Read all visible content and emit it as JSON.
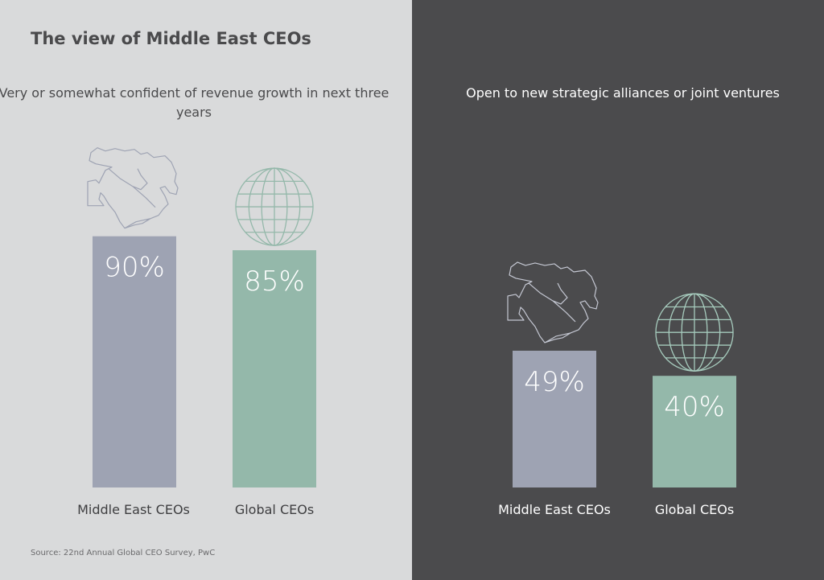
{
  "title": "The view of Middle East CEOs",
  "source": "Source: 22nd Annual Global CEO Survey, PwC",
  "colors": {
    "middle_east": "#9ea3b3",
    "global": "#94b8aa",
    "left_bg": "#d9dadb",
    "right_bg": "#4b4b4d"
  },
  "chart_data": [
    {
      "type": "bar",
      "title": "Very or somewhat confident of revenue growth in next three years",
      "categories": [
        "Middle East CEOs",
        "Global CEOs"
      ],
      "values": [
        90,
        85
      ],
      "labels": [
        "90%",
        "85%"
      ],
      "icons": [
        "middle-east-map-icon",
        "globe-icon"
      ]
    },
    {
      "type": "bar",
      "title": "Open to new strategic alliances or joint ventures",
      "categories": [
        "Middle East CEOs",
        "Global CEOs"
      ],
      "values": [
        49,
        40
      ],
      "labels": [
        "49%",
        "40%"
      ],
      "icons": [
        "middle-east-map-icon",
        "globe-icon"
      ]
    }
  ]
}
